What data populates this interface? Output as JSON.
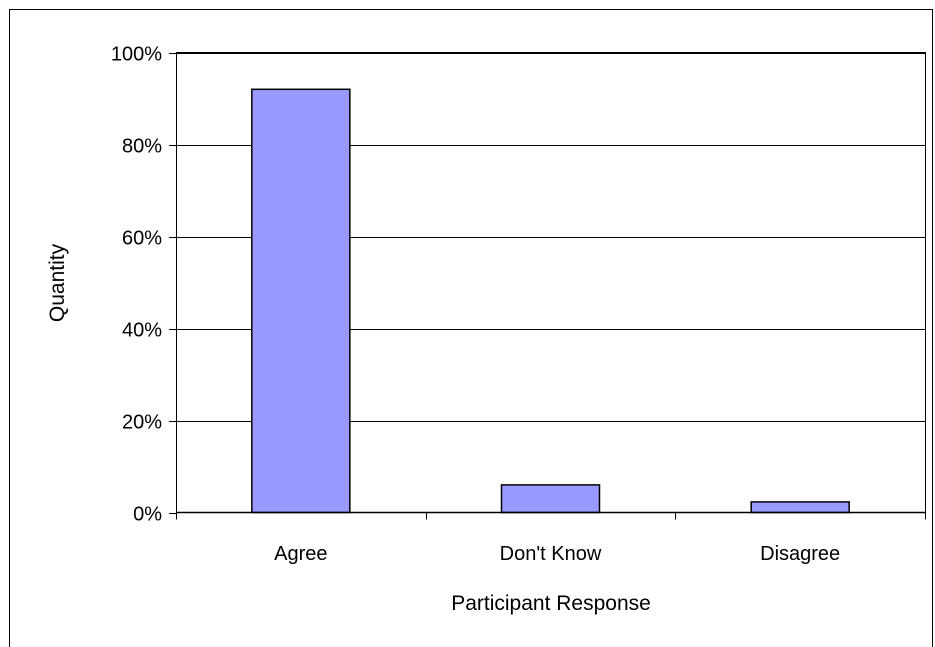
{
  "chart_data": {
    "type": "bar",
    "title": "",
    "xlabel": "Participant Response",
    "ylabel": "Quantity",
    "categories": [
      "Agree",
      "Don't Know",
      "Disagree"
    ],
    "values": [
      92,
      6,
      2.3
    ],
    "ylim": [
      0,
      100
    ],
    "yticks": [
      0,
      20,
      40,
      60,
      80,
      100
    ],
    "ytick_labels": [
      "0%",
      "20%",
      "40%",
      "60%",
      "80%",
      "100%"
    ],
    "value_unit": "%",
    "grid": "horizontal",
    "legend": "none",
    "colors": {
      "bar_fill": "#9999FF",
      "bar_stroke": "#000000",
      "grid": "#000000",
      "axis": "#000000",
      "background": "#FFFFFF",
      "border": "#000000"
    }
  }
}
